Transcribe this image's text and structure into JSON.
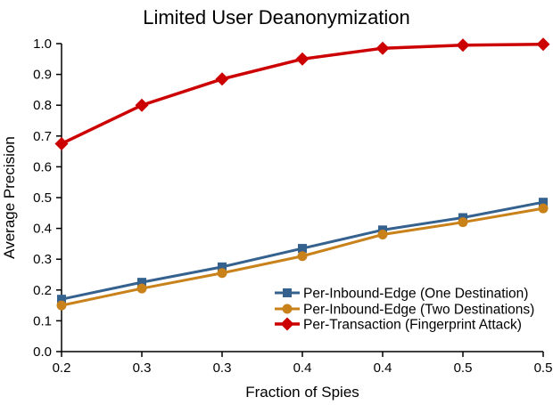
{
  "chart_data": {
    "type": "line",
    "title": "Limited User Deanonymization",
    "xlabel": "Fraction of Spies",
    "ylabel": "Average Precision",
    "xlim": [
      0.2,
      0.5
    ],
    "ylim": [
      0.0,
      1.0
    ],
    "grid": false,
    "legend_position": "lower-right-inside",
    "x": [
      0.2,
      0.25,
      0.3,
      0.35,
      0.4,
      0.45,
      0.5
    ],
    "xtick_values": [
      0.2,
      0.25,
      0.3,
      0.35,
      0.4,
      0.45,
      0.5
    ],
    "xtick_labels": [
      "0.2",
      "0.3",
      "0.3",
      "0.4",
      "0.4",
      "0.5",
      "0.5"
    ],
    "ytick_values": [
      0.0,
      0.1,
      0.2,
      0.3,
      0.4,
      0.5,
      0.6,
      0.7,
      0.8,
      0.9,
      1.0
    ],
    "ytick_labels": [
      "0.0",
      "0.1",
      "0.2",
      "0.3",
      "0.4",
      "0.5",
      "0.6",
      "0.7",
      "0.8",
      "0.9",
      "1.0"
    ],
    "axis_color": "#000000",
    "series": [
      {
        "name": "Per-Inbound-Edge (One Destination)",
        "marker": "square",
        "color": "#35618e",
        "values": [
          0.17,
          0.225,
          0.275,
          0.335,
          0.395,
          0.435,
          0.485
        ]
      },
      {
        "name": "Per-Inbound-Edge (Two Destinations)",
        "marker": "circle",
        "color": "#c98119",
        "values": [
          0.15,
          0.205,
          0.255,
          0.31,
          0.38,
          0.42,
          0.465
        ]
      },
      {
        "name": "Per-Transaction (Fingerprint Attack)",
        "marker": "diamond",
        "color": "#cc0000",
        "values": [
          0.675,
          0.8,
          0.885,
          0.95,
          0.985,
          0.995,
          0.998
        ]
      }
    ]
  }
}
